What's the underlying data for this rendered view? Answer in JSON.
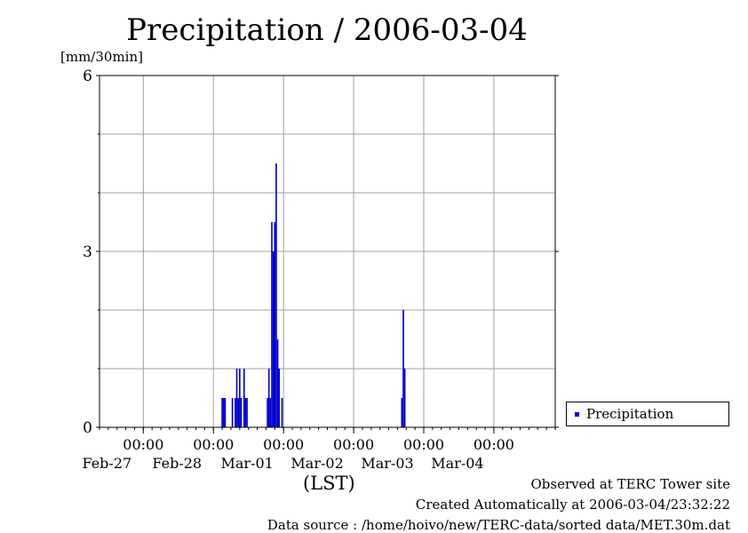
{
  "title": "Precipitation / 2006-03-04",
  "unit_label": "[mm/30min]",
  "xlabel": "(LST)",
  "legend": {
    "label": "Precipitation"
  },
  "footer": {
    "observed": "Observed at TERC Tower site",
    "created": "Created Automatically at 2006-03-04/23:32:22",
    "source": "Data source : /home/hoivo/new/TERC-data/sorted  data/MET.30m.dat"
  },
  "colors": {
    "bar": "#0000cc",
    "grid": "#a0a0a0",
    "axis": "#000000"
  },
  "chart_data": {
    "type": "bar",
    "title": "Precipitation / 2006-03-04",
    "ylabel": "[mm/30min]",
    "xlabel": "(LST)",
    "ylim": [
      0,
      6
    ],
    "yticks": [
      0,
      3,
      6
    ],
    "xlim": [
      "2006-02-26 09:00",
      "2006-03-04 21:00"
    ],
    "x_tick_times": [
      "2006-02-27 00:00",
      "2006-02-28 00:00",
      "2006-03-01 00:00",
      "2006-03-02 00:00",
      "2006-03-03 00:00",
      "2006-03-04 00:00"
    ],
    "x_ticks": [
      {
        "time": "00:00",
        "date": "Feb-27"
      },
      {
        "time": "00:00",
        "date": "Feb-28"
      },
      {
        "time": "00:00",
        "date": "Mar-01"
      },
      {
        "time": "00:00",
        "date": "Mar-02"
      },
      {
        "time": "00:00",
        "date": "Mar-03"
      },
      {
        "time": "00:00",
        "date": "Mar-04"
      }
    ],
    "grid": true,
    "legend_position": "right",
    "series": [
      {
        "name": "Precipitation",
        "color": "#0000cc",
        "points": [
          {
            "x": "2006-02-28 03:00",
            "y": 0.5
          },
          {
            "x": "2006-02-28 03:30",
            "y": 0.5
          },
          {
            "x": "2006-02-28 04:00",
            "y": 0.5
          },
          {
            "x": "2006-02-28 06:30",
            "y": 0.5
          },
          {
            "x": "2006-02-28 07:30",
            "y": 0.5
          },
          {
            "x": "2006-02-28 08:00",
            "y": 1.0
          },
          {
            "x": "2006-02-28 08:30",
            "y": 0.5
          },
          {
            "x": "2006-02-28 09:00",
            "y": 1.0
          },
          {
            "x": "2006-02-28 09:30",
            "y": 0.5
          },
          {
            "x": "2006-02-28 10:30",
            "y": 1.0
          },
          {
            "x": "2006-02-28 11:00",
            "y": 0.5
          },
          {
            "x": "2006-02-28 11:30",
            "y": 0.5
          },
          {
            "x": "2006-02-28 18:30",
            "y": 0.5
          },
          {
            "x": "2006-02-28 19:00",
            "y": 1.0
          },
          {
            "x": "2006-02-28 19:30",
            "y": 0.5
          },
          {
            "x": "2006-02-28 20:00",
            "y": 3.5
          },
          {
            "x": "2006-02-28 20:30",
            "y": 3.0
          },
          {
            "x": "2006-02-28 21:00",
            "y": 3.5
          },
          {
            "x": "2006-02-28 21:30",
            "y": 4.5
          },
          {
            "x": "2006-02-28 22:00",
            "y": 1.5
          },
          {
            "x": "2006-02-28 22:30",
            "y": 1.0
          },
          {
            "x": "2006-02-28 23:30",
            "y": 0.5
          },
          {
            "x": "2006-03-02 16:30",
            "y": 0.5
          },
          {
            "x": "2006-03-02 17:00",
            "y": 2.0
          },
          {
            "x": "2006-03-02 17:30",
            "y": 1.0
          }
        ]
      }
    ]
  }
}
